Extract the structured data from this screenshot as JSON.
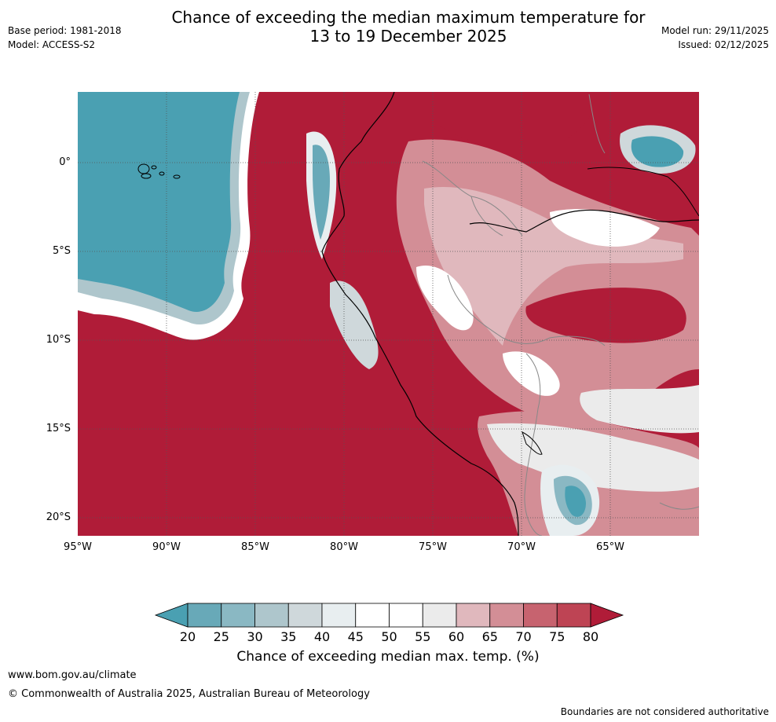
{
  "title_line1": "Chance of exceeding the median maximum temperature for",
  "title_line2": "13 to 19 December 2025",
  "base_period": "Base period: 1981-2018",
  "model": "Model: ACCESS-S2",
  "model_run": "Model run: 29/11/2025",
  "issued": "Issued: 02/12/2025",
  "y_ticks": [
    "0°",
    "5°S",
    "10°S",
    "15°S",
    "20°S"
  ],
  "x_ticks": [
    "95°W",
    "90°W",
    "85°W",
    "80°W",
    "75°W",
    "70°W",
    "65°W"
  ],
  "colorbar": {
    "labels": [
      "20",
      "25",
      "30",
      "35",
      "40",
      "45",
      "50",
      "55",
      "60",
      "65",
      "70",
      "75",
      "80"
    ],
    "colors": [
      "#4aa0b2",
      "#68a9b8",
      "#8ab8c3",
      "#aec6cc",
      "#cfd8db",
      "#e8eef0",
      "#ffffff",
      "#ffffff",
      "#ebebeb",
      "#e0b8bd",
      "#d38e96",
      "#c7636f",
      "#be4454",
      "#b01c38"
    ],
    "title": "Chance of exceeding median max. temp. (%)"
  },
  "website": "www.bom.gov.au/climate",
  "copyright": "© Commonwealth of Australia 2025, Australian Bureau of Meteorology",
  "disclaimer": "Boundaries are not considered authoritative"
}
